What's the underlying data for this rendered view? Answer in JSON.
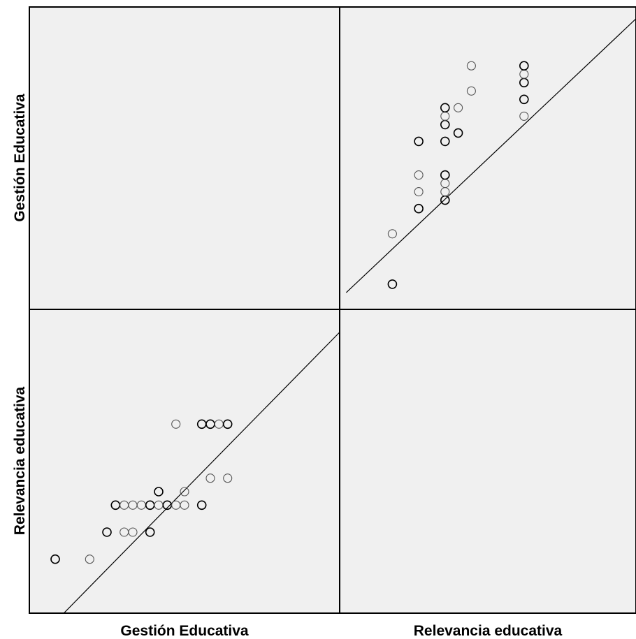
{
  "chart_data": {
    "type": "scatter",
    "subtype": "scatterplot-matrix",
    "variables": [
      "Gestión Educativa",
      "Relevancia educativa"
    ],
    "row_labels": [
      "Gestión Educativa",
      "Relevancia educativa"
    ],
    "column_labels": [
      "Gestión Educativa",
      "Relevancia educativa"
    ],
    "fit_line": true,
    "grid": false,
    "panel_background": "#f0f0f0",
    "marker_color": "#000000",
    "gestion_range": [
      63.5,
      81.5
    ],
    "relevancia_range": [
      25,
      47.5
    ],
    "panels": [
      {
        "name": "Gestión Educativa vs Relevancia educativa",
        "row": 0,
        "col": 1,
        "x_variable": "Relevancia educativa",
        "y_variable": "Gestión Educativa",
        "points": [
          {
            "x": 29,
            "y": 65,
            "bold": true
          },
          {
            "x": 29,
            "y": 68,
            "bold": false
          },
          {
            "x": 31,
            "y": 69.5,
            "bold": true
          },
          {
            "x": 31,
            "y": 70.5,
            "bold": false
          },
          {
            "x": 31,
            "y": 71.5,
            "bold": false
          },
          {
            "x": 31,
            "y": 73.5,
            "bold": true
          },
          {
            "x": 33,
            "y": 70,
            "bold": true
          },
          {
            "x": 33,
            "y": 70.5,
            "bold": false
          },
          {
            "x": 33,
            "y": 71,
            "bold": false
          },
          {
            "x": 33,
            "y": 71.5,
            "bold": true
          },
          {
            "x": 33,
            "y": 73.5,
            "bold": true
          },
          {
            "x": 33,
            "y": 74.5,
            "bold": true
          },
          {
            "x": 33,
            "y": 75,
            "bold": false
          },
          {
            "x": 33,
            "y": 75.5,
            "bold": true
          },
          {
            "x": 34,
            "y": 74,
            "bold": true
          },
          {
            "x": 34,
            "y": 75.5,
            "bold": false
          },
          {
            "x": 35,
            "y": 76.5,
            "bold": false
          },
          {
            "x": 35,
            "y": 78,
            "bold": false
          },
          {
            "x": 39,
            "y": 75,
            "bold": false
          },
          {
            "x": 39,
            "y": 76,
            "bold": true
          },
          {
            "x": 39,
            "y": 77,
            "bold": true
          },
          {
            "x": 39,
            "y": 77.5,
            "bold": false
          },
          {
            "x": 39,
            "y": 78,
            "bold": true
          }
        ],
        "fit": {
          "x_range": [
            25.5,
            47.5
          ],
          "y_range": [
            64.5,
            80.8
          ]
        }
      },
      {
        "name": "Relevancia educativa vs Gestión Educativa",
        "row": 1,
        "col": 0,
        "x_variable": "Gestión Educativa",
        "y_variable": "Relevancia educativa",
        "points": [
          {
            "x": 65,
            "y": 29,
            "bold": true
          },
          {
            "x": 67,
            "y": 29,
            "bold": false
          },
          {
            "x": 68,
            "y": 31,
            "bold": true
          },
          {
            "x": 69,
            "y": 31,
            "bold": false
          },
          {
            "x": 69.5,
            "y": 31,
            "bold": false
          },
          {
            "x": 70.5,
            "y": 31,
            "bold": true
          },
          {
            "x": 68.5,
            "y": 33,
            "bold": true
          },
          {
            "x": 69,
            "y": 33,
            "bold": false
          },
          {
            "x": 69.5,
            "y": 33,
            "bold": false
          },
          {
            "x": 70,
            "y": 33,
            "bold": false
          },
          {
            "x": 70.5,
            "y": 33,
            "bold": true
          },
          {
            "x": 71,
            "y": 33,
            "bold": false
          },
          {
            "x": 71.5,
            "y": 33,
            "bold": true
          },
          {
            "x": 72,
            "y": 33,
            "bold": false
          },
          {
            "x": 72.5,
            "y": 33,
            "bold": false
          },
          {
            "x": 73.5,
            "y": 33,
            "bold": true
          },
          {
            "x": 71,
            "y": 34,
            "bold": true
          },
          {
            "x": 72.5,
            "y": 34,
            "bold": false
          },
          {
            "x": 74,
            "y": 35,
            "bold": false
          },
          {
            "x": 75,
            "y": 35,
            "bold": false
          },
          {
            "x": 72,
            "y": 39,
            "bold": false
          },
          {
            "x": 73.5,
            "y": 39,
            "bold": true
          },
          {
            "x": 74,
            "y": 39,
            "bold": true
          },
          {
            "x": 74.5,
            "y": 39,
            "bold": false
          },
          {
            "x": 75,
            "y": 39,
            "bold": true
          }
        ],
        "fit": {
          "x_range": [
            65.5,
            82.8
          ],
          "y_range": [
            25,
            47.5
          ]
        }
      }
    ]
  }
}
